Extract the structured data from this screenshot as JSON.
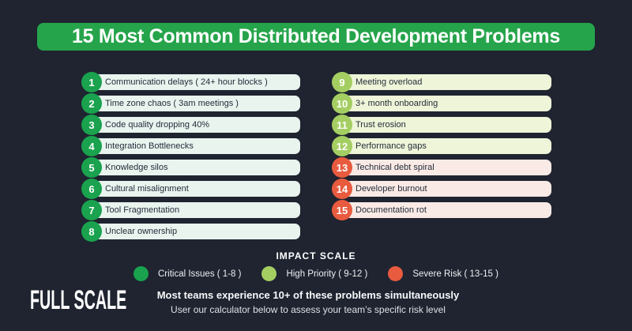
{
  "page": {
    "background": "#1f2430"
  },
  "header": {
    "title": "15 Most Common Distributed Development Problems",
    "background": "#26a44b"
  },
  "tiers": {
    "critical": {
      "badge": "#1aa24e",
      "pill": "#e9f4ef"
    },
    "high": {
      "badge": "#a5ce62",
      "pill": "#eef5d8"
    },
    "severe": {
      "badge": "#e85b3f",
      "pill": "#f9eae5"
    }
  },
  "items": [
    {
      "num": "1",
      "label": "Communication delays ( 24+ hour blocks )",
      "tier": "critical"
    },
    {
      "num": "2",
      "label": "Time zone chaos ( 3am meetings )",
      "tier": "critical"
    },
    {
      "num": "3",
      "label": "Code quality dropping 40%",
      "tier": "critical"
    },
    {
      "num": "4",
      "label": "Integration Bottlenecks",
      "tier": "critical"
    },
    {
      "num": "5",
      "label": "Knowledge silos",
      "tier": "critical"
    },
    {
      "num": "6",
      "label": "Cultural misalignment",
      "tier": "critical"
    },
    {
      "num": "7",
      "label": "Tool Fragmentation",
      "tier": "critical"
    },
    {
      "num": "8",
      "label": "Unclear ownership",
      "tier": "critical"
    },
    {
      "num": "9",
      "label": "Meeting overload",
      "tier": "high"
    },
    {
      "num": "10",
      "label": "3+ month onboarding",
      "tier": "high"
    },
    {
      "num": "11",
      "label": "Trust erosion",
      "tier": "high"
    },
    {
      "num": "12",
      "label": "Performance gaps",
      "tier": "high"
    },
    {
      "num": "13",
      "label": "Technical debt spiral",
      "tier": "severe"
    },
    {
      "num": "14",
      "label": "Developer burnout",
      "tier": "severe"
    },
    {
      "num": "15",
      "label": "Documentation rot",
      "tier": "severe"
    }
  ],
  "legend": {
    "title": "IMPACT SCALE",
    "entries": [
      {
        "label": "Critical Issues ( 1-8 )",
        "color": "#1aa24e"
      },
      {
        "label": "High Priority ( 9-12 )",
        "color": "#a5ce62"
      },
      {
        "label": "Severe Risk ( 13-15 )",
        "color": "#e85b3f"
      }
    ]
  },
  "footer": {
    "logo": "FULL SCALE",
    "headline": "Most teams experience 10+ of these problems simultaneously",
    "subline": "User our calculator below to assess your team’s specific risk level"
  }
}
